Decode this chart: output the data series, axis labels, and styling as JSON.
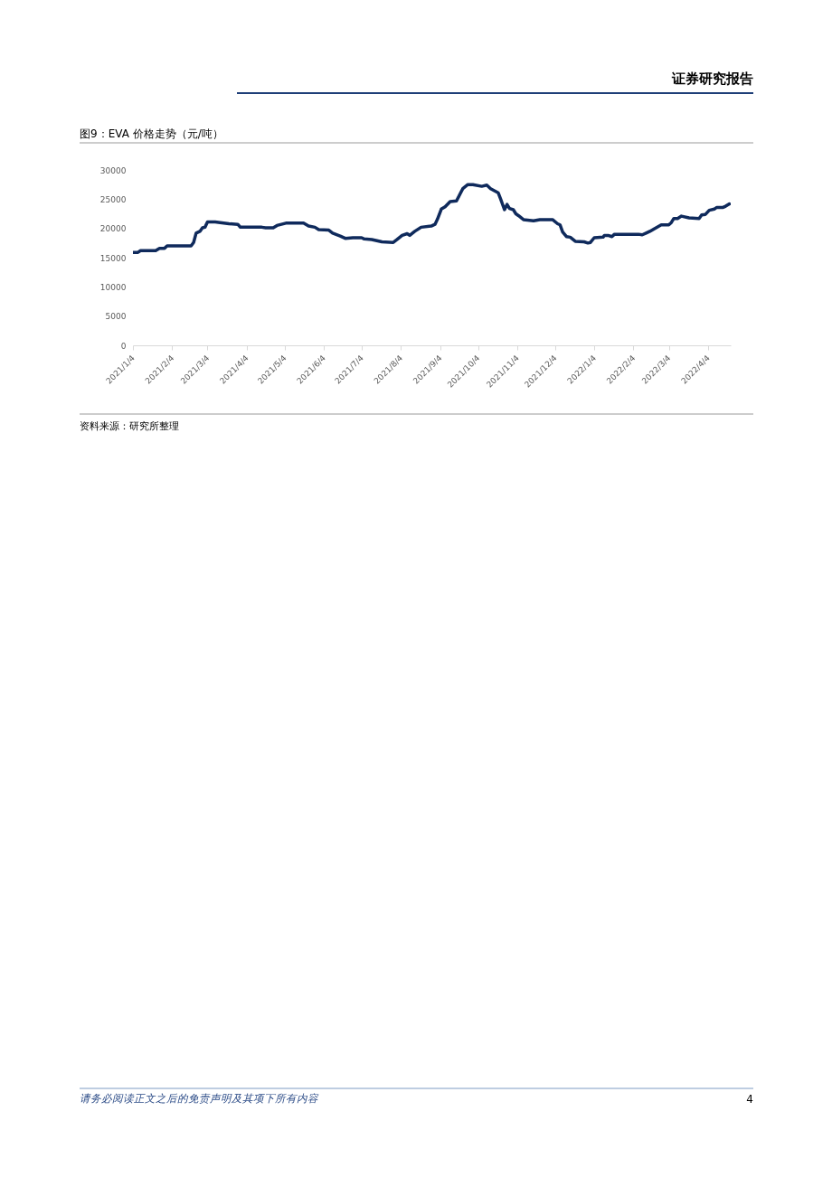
{
  "chart_data": {
    "type": "line",
    "title": "图9：EVA 价格走势（元/吨）",
    "annotations": [
      "证券研究报告",
      "资料来源：研究所整理",
      "请务必阅读正文之后的免责声明及其项下所有内容",
      "4"
    ],
    "x": [
      "2021-01-04",
      "2021-01-08",
      "2021-01-10",
      "2021-01-22",
      "2021-01-25",
      "2021-01-29",
      "2021-01-31",
      "2021-02-19",
      "2021-02-21",
      "2021-02-23",
      "2021-02-26",
      "2021-02-28",
      "2021-03-02",
      "2021-03-04",
      "2021-03-10",
      "2021-03-14",
      "2021-03-21",
      "2021-03-28",
      "2021-03-30",
      "2021-04-16",
      "2021-04-19",
      "2021-04-25",
      "2021-04-28",
      "2021-05-05",
      "2021-05-19",
      "2021-05-23",
      "2021-05-28",
      "2021-05-31",
      "2021-06-08",
      "2021-06-11",
      "2021-06-17",
      "2021-06-21",
      "2021-06-27",
      "2021-07-04",
      "2021-07-06",
      "2021-07-12",
      "2021-07-16",
      "2021-07-20",
      "2021-07-29",
      "2021-08-01",
      "2021-08-05",
      "2021-08-09",
      "2021-08-11",
      "2021-08-15",
      "2021-08-20",
      "2021-08-28",
      "2021-08-31",
      "2021-09-02",
      "2021-09-05",
      "2021-09-08",
      "2021-09-12",
      "2021-09-17",
      "2021-09-22",
      "2021-09-26",
      "2021-09-30",
      "2021-10-07",
      "2021-10-11",
      "2021-10-14",
      "2021-10-20",
      "2021-10-22",
      "2021-10-25",
      "2021-10-27",
      "2021-10-29",
      "2021-11-01",
      "2021-11-03",
      "2021-11-05",
      "2021-11-09",
      "2021-11-17",
      "2021-11-22",
      "2021-12-02",
      "2021-12-06",
      "2021-12-08",
      "2021-12-10",
      "2021-12-13",
      "2021-12-16",
      "2021-12-20",
      "2021-12-27",
      "2021-12-30",
      "2022-01-01",
      "2022-01-04",
      "2022-01-11",
      "2022-01-12",
      "2022-01-15",
      "2022-01-18",
      "2022-01-20",
      "2022-02-08",
      "2022-02-11",
      "2022-02-14",
      "2022-02-17",
      "2022-02-21",
      "2022-02-26",
      "2022-03-04",
      "2022-03-06",
      "2022-03-08",
      "2022-03-11",
      "2022-03-14",
      "2022-03-20",
      "2022-03-28",
      "2022-03-30",
      "2022-04-02",
      "2022-04-05",
      "2022-04-09",
      "2022-04-11",
      "2022-04-16",
      "2022-04-18",
      "2022-04-21"
    ],
    "series": [
      {
        "color": "#0f2a5c",
        "values": [
          15900,
          15900,
          16200,
          16200,
          16600,
          16600,
          17000,
          17000,
          17600,
          19200,
          19500,
          20100,
          20200,
          21100,
          21100,
          21000,
          20800,
          20700,
          20200,
          20200,
          20100,
          20100,
          20500,
          20900,
          20900,
          20400,
          20200,
          19800,
          19700,
          19200,
          18700,
          18300,
          18400,
          18400,
          18200,
          18100,
          17900,
          17700,
          17600,
          18100,
          18800,
          19100,
          18800,
          19500,
          20200,
          20400,
          20700,
          21600,
          23300,
          23700,
          24600,
          24700,
          26800,
          27500,
          27500,
          27200,
          27400,
          26800,
          26100,
          25000,
          23200,
          24100,
          23400,
          23200,
          22500,
          22200,
          21500,
          21300,
          21500,
          21500,
          20800,
          20600,
          19400,
          18600,
          18500,
          17800,
          17700,
          17500,
          17600,
          18400,
          18500,
          18800,
          18800,
          18600,
          19000,
          19000,
          18900,
          19200,
          19500,
          20000,
          20600,
          20600,
          21000,
          21700,
          21700,
          22100,
          21800,
          21700,
          22300,
          22400,
          23100,
          23300,
          23600,
          23600,
          23800,
          24200
        ]
      }
    ],
    "xlim": [
      "2021-01-04",
      "2022-04-22"
    ],
    "xticks": [
      {
        "value": "2021-01-04",
        "label": "2021/1/4"
      },
      {
        "value": "2021-02-04",
        "label": "2021/2/4"
      },
      {
        "value": "2021-03-04",
        "label": "2021/3/4"
      },
      {
        "value": "2021-04-04",
        "label": "2021/4/4"
      },
      {
        "value": "2021-05-04",
        "label": "2021/5/4"
      },
      {
        "value": "2021-06-04",
        "label": "2021/6/4"
      },
      {
        "value": "2021-07-04",
        "label": "2021/7/4"
      },
      {
        "value": "2021-08-04",
        "label": "2021/8/4"
      },
      {
        "value": "2021-09-04",
        "label": "2021/9/4"
      },
      {
        "value": "2021-10-04",
        "label": "2021/10/4"
      },
      {
        "value": "2021-11-04",
        "label": "2021/11/4"
      },
      {
        "value": "2021-12-04",
        "label": "2021/12/4"
      },
      {
        "value": "2022-01-04",
        "label": "2022/1/4"
      },
      {
        "value": "2022-02-04",
        "label": "2022/2/4"
      },
      {
        "value": "2022-03-04",
        "label": "2022/3/4"
      },
      {
        "value": "2022-04-04",
        "label": "2022/4/4"
      }
    ],
    "ylim": [
      0,
      30000
    ],
    "yticks": [
      0,
      5000,
      10000,
      15000,
      20000,
      25000,
      30000
    ],
    "grid": false,
    "marker": "none",
    "line_style": "solid"
  }
}
